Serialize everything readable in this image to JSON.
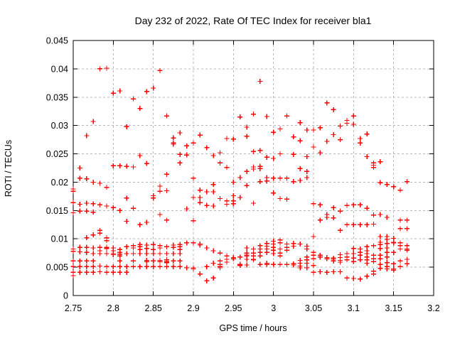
{
  "title": "Day 232 of 2022, Rate Of TEC Index for receiver bla1",
  "chart_data": {
    "type": "scatter",
    "title": "Day 232 of 2022, Rate Of TEC Index for receiver bla1",
    "xlabel": "GPS time / hours",
    "ylabel": "ROTI / TECUs",
    "xlim": [
      2.75,
      3.2
    ],
    "ylim": [
      0,
      0.045
    ],
    "grid": true,
    "legend": "none",
    "marker": "plus",
    "marker_color": "#ff0000",
    "grid_color": "#b8b8b8",
    "frame_color": "#000000",
    "background": "#ffffff",
    "x_axis": {
      "label": "GPS time / hours",
      "min": 2.75,
      "max": 3.2,
      "ticks": [
        [
          2.75,
          "2.75"
        ],
        [
          2.8,
          "2.8"
        ],
        [
          2.85,
          "2.85"
        ],
        [
          2.9,
          "2.9"
        ],
        [
          2.95,
          "2.95"
        ],
        [
          3,
          "3"
        ],
        [
          3.05,
          "3.05"
        ],
        [
          3.1,
          "3.1"
        ],
        [
          3.15,
          "3.15"
        ],
        [
          3.2,
          "3.2"
        ]
      ]
    },
    "y_axis": {
      "label": "ROTI / TECUs",
      "min": 0,
      "max": 0.045,
      "ticks": [
        [
          0,
          "0"
        ],
        [
          0.005,
          "0.005"
        ],
        [
          0.01,
          "0.01"
        ],
        [
          0.015,
          "0.015"
        ],
        [
          0.02,
          "0.02"
        ],
        [
          0.025,
          "0.025"
        ],
        [
          0.03,
          "0.03"
        ],
        [
          0.035,
          "0.035"
        ],
        [
          0.04,
          "0.04"
        ],
        [
          0.045,
          "0.045"
        ]
      ]
    },
    "series": [
      {
        "name": "ROTI",
        "color": "#ff0000",
        "epochs": [
          [
            2.75,
            [
              0.0188,
              0.0184,
              0.0164,
              0.0146,
              0.0082,
              0.0078,
              0.0061,
              0.0051,
              0.0041,
              0.0035
            ]
          ],
          [
            2.7583,
            [
              0.0225,
              0.0207,
              0.0161,
              0.0149,
              0.0085,
              0.0077,
              0.0061,
              0.0051,
              0.0041
            ]
          ],
          [
            2.7667,
            [
              0.0282,
              0.0206,
              0.0163,
              0.0149,
              0.0102,
              0.0085,
              0.0076,
              0.0061,
              0.0051,
              0.0041
            ]
          ],
          [
            2.775,
            [
              0.0307,
              0.02,
              0.0162,
              0.0147,
              0.0107,
              0.0084,
              0.0074,
              0.0061,
              0.0051,
              0.0041
            ]
          ],
          [
            2.7833,
            [
              0.04,
              0.0198,
              0.016,
              0.0115,
              0.011,
              0.0085,
              0.0079,
              0.0074,
              0.0052,
              0.0042
            ]
          ],
          [
            2.7917,
            [
              0.0401,
              0.0191,
              0.0158,
              0.0102,
              0.0097,
              0.0085,
              0.0083,
              0.0074,
              0.0051,
              0.0041
            ]
          ],
          [
            2.8,
            [
              0.0357,
              0.0229,
              0.0155,
              0.0084,
              0.0079,
              0.0074,
              0.0072,
              0.0051,
              0.0041
            ]
          ],
          [
            2.8083,
            [
              0.0361,
              0.0229,
              0.015,
              0.0081,
              0.0076,
              0.0073,
              0.007,
              0.0061,
              0.0051,
              0.0041
            ]
          ],
          [
            2.8167,
            [
              0.0298,
              0.0228,
              0.0172,
              0.0131,
              0.0086,
              0.0074,
              0.0051,
              0.0041
            ]
          ],
          [
            2.825,
            [
              0.0347,
              0.0227,
              0.0154,
              0.0088,
              0.0084,
              0.0074,
              0.0061,
              0.0051
            ]
          ],
          [
            2.8333,
            [
              0.033,
              0.0247,
              0.0125,
              0.009,
              0.0086,
              0.0081,
              0.0074,
              0.0051
            ]
          ],
          [
            2.8417,
            [
              0.036,
              0.0233,
              0.0129,
              0.0089,
              0.0083,
              0.0074,
              0.0062,
              0.006,
              0.0051
            ]
          ],
          [
            2.85,
            [
              0.0366,
              0.0176,
              0.0172,
              0.009,
              0.0081,
              0.0074,
              0.0061,
              0.0051
            ]
          ],
          [
            2.8583,
            [
              0.0397,
              0.0193,
              0.0184,
              0.0143,
              0.0088,
              0.0084,
              0.0074,
              0.0062,
              0.006,
              0.0051
            ]
          ],
          [
            2.8667,
            [
              0.0317,
              0.0214,
              0.0185,
              0.0133,
              0.0086,
              0.0074,
              0.0063,
              0.006,
              0.0058,
              0.0051
            ]
          ],
          [
            2.875,
            [
              0.0278,
              0.0269,
              0.0267,
              0.0089,
              0.0085,
              0.0074,
              0.0061,
              0.0051
            ]
          ],
          [
            2.8833,
            [
              0.0287,
              0.0249,
              0.0234,
              0.009,
              0.0086,
              0.0081,
              0.0074,
              0.0061,
              0.0051
            ]
          ],
          [
            2.8917,
            [
              0.0264,
              0.0248,
              0.0153,
              0.0093,
              0.0049
            ]
          ],
          [
            2.9,
            [
              0.0269,
              0.0207,
              0.0173,
              0.0132,
              0.0093,
              0.0049,
              0.0047
            ]
          ],
          [
            2.9083,
            [
              0.0283,
              0.0186,
              0.0173,
              0.0164,
              0.0091,
              0.0089,
              0.0038
            ]
          ],
          [
            2.9167,
            [
              0.0261,
              0.0183,
              0.0159,
              0.0084,
              0.0051,
              0.0026
            ]
          ],
          [
            2.925,
            [
              0.0247,
              0.0196,
              0.0183,
              0.0158,
              0.0079,
              0.0057,
              0.0031
            ]
          ],
          [
            2.9333,
            [
              0.0252,
              0.0234,
              0.0171,
              0.0075,
              0.0061,
              0.0055,
              0.0051,
              0.0049
            ]
          ],
          [
            2.9417,
            [
              0.0277,
              0.0226,
              0.0167,
              0.0161,
              0.007,
              0.0064,
              0.0059
            ]
          ],
          [
            2.95,
            [
              0.0276,
              0.02,
              0.0176,
              0.0167,
              0.0162,
              0.0067,
              0.0065
            ]
          ],
          [
            2.9583,
            [
              0.0315,
              0.0208,
              0.0173,
              0.0068,
              0.0055,
              0.0053
            ]
          ],
          [
            2.9667,
            [
              0.0297,
              0.0281,
              0.0219,
              0.0194,
              0.0084,
              0.0075,
              0.0071,
              0.0069,
              0.0064,
              0.0054
            ]
          ],
          [
            2.975,
            [
              0.032,
              0.0254,
              0.0227,
              0.0223,
              0.0163,
              0.0082,
              0.0075,
              0.007,
              0.0064,
              0.0063
            ]
          ],
          [
            2.9833,
            [
              0.0378,
              0.0256,
              0.0228,
              0.0224,
              0.0201,
              0.0088,
              0.0082,
              0.0076,
              0.007,
              0.0055
            ]
          ],
          [
            2.9917,
            [
              0.0316,
              0.0244,
              0.0208,
              0.0202,
              0.0092,
              0.0087,
              0.0082,
              0.0076,
              0.0057,
              0.0055
            ]
          ],
          [
            3.0,
            [
              0.0288,
              0.0242,
              0.0207,
              0.0181,
              0.0096,
              0.0091,
              0.0085,
              0.008,
              0.0074,
              0.0055
            ]
          ],
          [
            3.0083,
            [
              0.0294,
              0.025,
              0.0207,
              0.0171,
              0.0098,
              0.0093,
              0.0082,
              0.0075,
              0.007,
              0.0055
            ]
          ],
          [
            3.0167,
            [
              0.0317,
              0.0207,
              0.017,
              0.0091,
              0.0085,
              0.008,
              0.0055
            ]
          ],
          [
            3.025,
            [
              0.028,
              0.0249,
              0.0201,
              0.0092,
              0.0087,
              0.0056,
              0.0054
            ]
          ],
          [
            3.0333,
            [
              0.0305,
              0.0273,
              0.0224,
              0.0203,
              0.0091,
              0.0062,
              0.0057,
              0.0052,
              0.0049
            ]
          ],
          [
            3.0417,
            [
              0.0292,
              0.0245,
              0.0219,
              0.0208,
              0.0087,
              0.0082,
              0.0068,
              0.0063,
              0.0057,
              0.0049
            ]
          ],
          [
            3.05,
            [
              0.0292,
              0.0262,
              0.0162,
              0.0104,
              0.0076,
              0.0071,
              0.0065,
              0.0053,
              0.0041
            ]
          ],
          [
            3.0583,
            [
              0.0296,
              0.0252,
              0.016,
              0.0133,
              0.0071,
              0.0068,
              0.0042
            ]
          ],
          [
            3.0667,
            [
              0.034,
              0.0272,
              0.0143,
              0.0138,
              0.0067,
              0.0065,
              0.0041
            ]
          ],
          [
            3.075,
            [
              0.0328,
              0.0284,
              0.0155,
              0.0137,
              0.0066,
              0.0064,
              0.0061,
              0.0042
            ]
          ],
          [
            3.0833,
            [
              0.0299,
              0.0275,
              0.0149,
              0.0115,
              0.0072,
              0.0067,
              0.0062,
              0.0059,
              0.0042
            ]
          ],
          [
            3.0917,
            [
              0.0309,
              0.0304,
              0.0159,
              0.0125,
              0.0074,
              0.0068,
              0.0063,
              0.0031
            ]
          ],
          [
            3.1,
            [
              0.0317,
              0.0302,
              0.016,
              0.0125,
              0.0083,
              0.0074,
              0.0066,
              0.006,
              0.003
            ]
          ],
          [
            3.1083,
            [
              0.0277,
              0.0269,
              0.016,
              0.0125,
              0.0082,
              0.0076,
              0.0071,
              0.0063,
              0.0029
            ]
          ],
          [
            3.1167,
            [
              0.0285,
              0.0245,
              0.0154,
              0.0125,
              0.0086,
              0.0079,
              0.0074,
              0.0068,
              0.0063,
              0.0057,
              0.0034
            ]
          ],
          [
            3.125,
            [
              0.0234,
              0.023,
              0.0226,
              0.0142,
              0.0126,
              0.0088,
              0.0071,
              0.0065,
              0.006,
              0.0043,
              0.0038
            ]
          ],
          [
            3.1333,
            [
              0.0236,
              0.0199,
              0.0143,
              0.0104,
              0.0094,
              0.009,
              0.0083,
              0.0071,
              0.0065,
              0.0055,
              0.0048
            ]
          ],
          [
            3.1417,
            [
              0.0196,
              0.0138,
              0.0104,
              0.0099,
              0.0092,
              0.0084,
              0.0076,
              0.0068,
              0.0058,
              0.0051,
              0.0047
            ]
          ],
          [
            3.15,
            [
              0.0192,
              0.0101,
              0.0094,
              0.0093,
              0.0076,
              0.0056,
              0.0047,
              0.0045
            ]
          ],
          [
            3.1583,
            [
              0.0186,
              0.0133,
              0.0118,
              0.0093,
              0.0088,
              0.0082,
              0.0061,
              0.0051
            ]
          ],
          [
            3.1667,
            [
              0.0201,
              0.0133,
              0.0118,
              0.0088,
              0.0082,
              0.008,
              0.0064,
              0.0056
            ]
          ]
        ]
      }
    ]
  }
}
